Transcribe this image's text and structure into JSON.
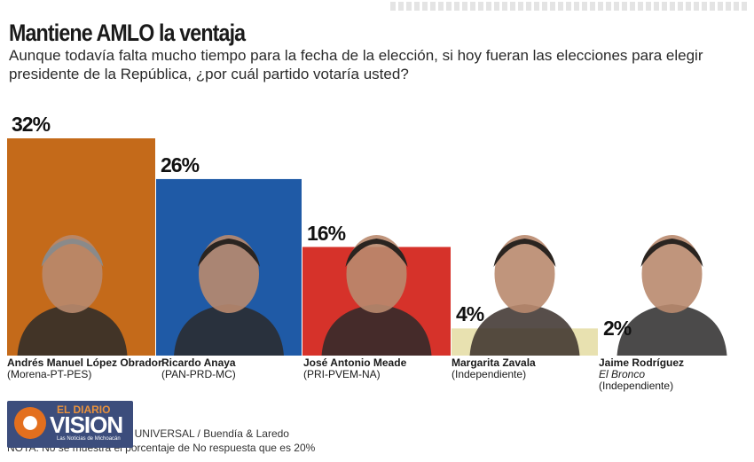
{
  "title": "Mantiene AMLO la ventaja",
  "subtitle": "Aunque todavía falta mucho tiempo para la fecha de la elección, si hoy fueran las elecciones para elegir presidente de la República, ¿por cuál partido votaría usted?",
  "chart_data": {
    "type": "bar",
    "categories": [
      "Andrés Manuel López Obrador",
      "Ricardo Anaya",
      "José Antonio Meade",
      "Margarita Zavala",
      "Jaime Rodríguez"
    ],
    "values": [
      32,
      26,
      16,
      4,
      2
    ],
    "value_labels": [
      "32%",
      "26%",
      "16%",
      "4%",
      "2%"
    ],
    "colors": [
      "#c46a1a",
      "#1f5aa6",
      "#d6322a",
      "#e8e1b0",
      "#ffffff"
    ],
    "ylim": [
      0,
      32
    ],
    "grid": false,
    "legend": "none"
  },
  "candidates": [
    {
      "name": "Andrés Manuel López Obrador",
      "party": "(Morena-PT-PES)",
      "alias": ""
    },
    {
      "name": "Ricardo Anaya",
      "party": "(PAN-PRD-MC)",
      "alias": ""
    },
    {
      "name": "José Antonio Meade",
      "party": "(PRI-PVEM-NA)",
      "alias": ""
    },
    {
      "name": "Margarita Zavala",
      "party": "(Independiente)",
      "alias": ""
    },
    {
      "name": "Jaime Rodríguez",
      "party": "(Independiente)",
      "alias": "El Bronco"
    }
  ],
  "footer": {
    "source": "Encuesta realizada por EL UNIVERSAL / Buendía & Laredo",
    "note": "NOTA: No se muestra el porcentaje de No respuesta que es 20%"
  },
  "logo": {
    "line1": "EL DIARIO",
    "line2": "VISION",
    "line3": "Las Noticias de Michoacán"
  }
}
